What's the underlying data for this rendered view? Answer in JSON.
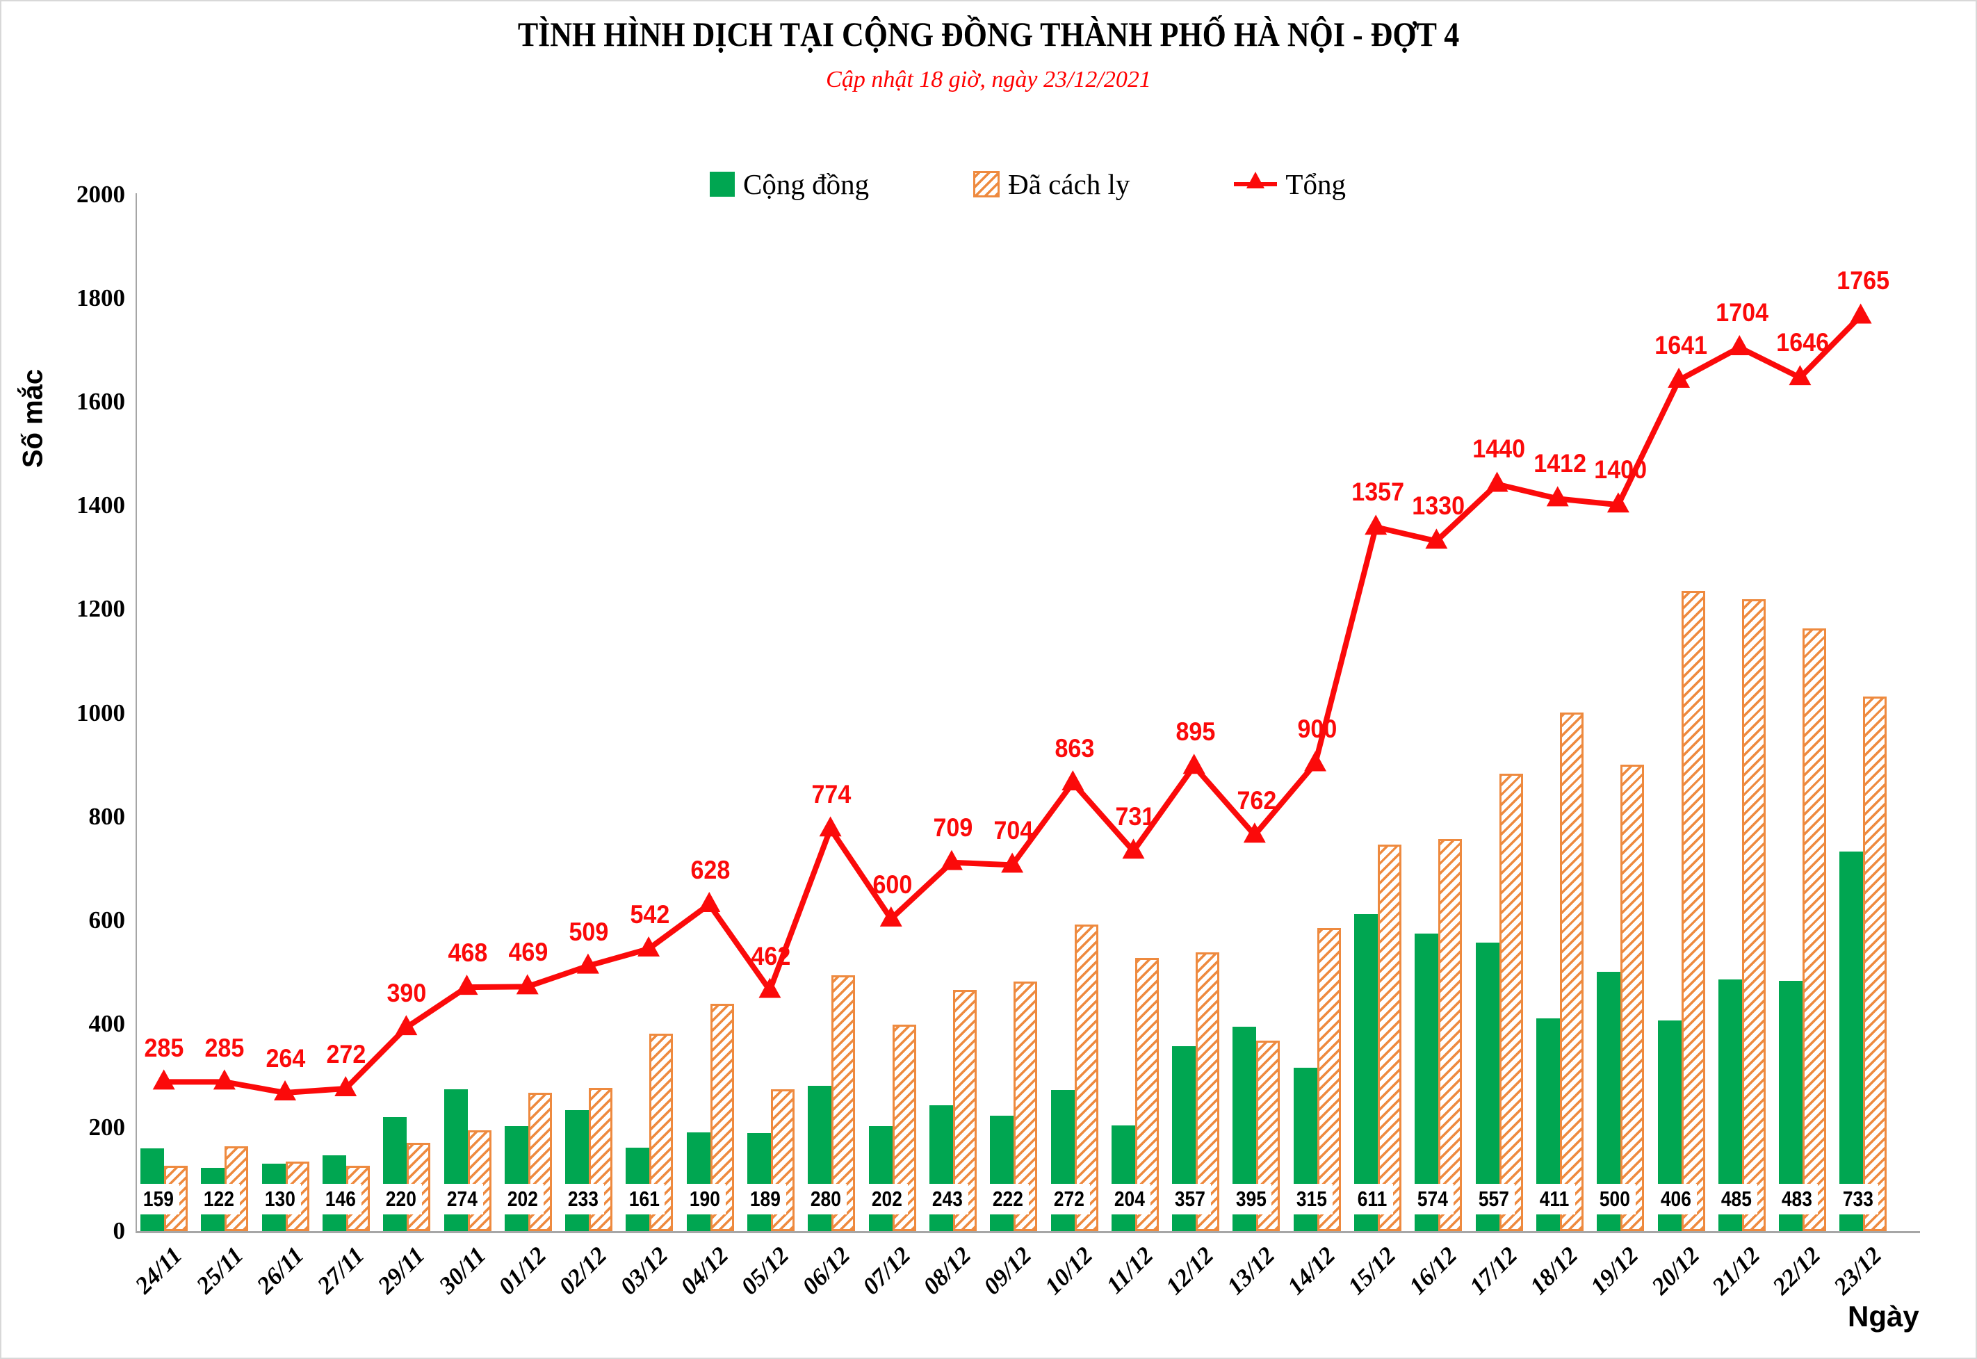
{
  "header": {
    "title": "TÌNH HÌNH DỊCH TẠI CỘNG ĐỒNG THÀNH PHỐ HÀ NỘI - ĐỢT 4",
    "subtitle": "Cập nhật 18 giờ, ngày 23/12/2021"
  },
  "legend": {
    "items": [
      {
        "label": "Cộng đồng",
        "swatch": "green-solid-square"
      },
      {
        "label": "Đã cách ly",
        "swatch": "orange-hatched-square"
      },
      {
        "label": "Tổng",
        "swatch": "red-line-with-triangle-marker"
      }
    ]
  },
  "colors": {
    "community_green": "#00A651",
    "quarantine_orange": "#EE8A3F",
    "total_red": "#FB0A0A",
    "subtitle_red": "#FF0000",
    "axis_gray": "#A6A6A6",
    "text_black": "#000000"
  },
  "y_axis": {
    "title": "Số mắc",
    "min": 0,
    "max": 2000,
    "step": 200,
    "tick_labels": [
      "0",
      "200",
      "400",
      "600",
      "800",
      "1000",
      "1200",
      "1400",
      "1600",
      "1800",
      "2000"
    ]
  },
  "x_axis": {
    "title": "Ngày"
  },
  "chart_data": {
    "type": "bar",
    "subtype": "grouped-bars-with-line-overlay",
    "title": "TÌNH HÌNH DỊCH TẠI CỘNG ĐỒNG THÀNH PHỐ HÀ NỘI - ĐỢT 4",
    "xlabel": "Ngày",
    "ylabel": "Số mắc",
    "ylim": [
      0,
      2000
    ],
    "grid": false,
    "legend_position": "top-center",
    "categories": [
      "24/11",
      "25/11",
      "26/11",
      "27/11",
      "29/11",
      "30/11",
      "01/12",
      "02/12",
      "03/12",
      "04/12",
      "05/12",
      "06/12",
      "07/12",
      "08/12",
      "09/12",
      "10/12",
      "11/12",
      "12/12",
      "13/12",
      "14/12",
      "15/12",
      "16/12",
      "17/12",
      "18/12",
      "19/12",
      "20/12",
      "21/12",
      "22/12",
      "23/12"
    ],
    "series": [
      {
        "name": "Cộng đồng",
        "type": "bar",
        "style": "solid-green",
        "labels_visible": true,
        "values": [
          159,
          122,
          130,
          146,
          220,
          274,
          202,
          233,
          161,
          190,
          189,
          280,
          202,
          243,
          222,
          272,
          204,
          357,
          395,
          315,
          611,
          574,
          557,
          411,
          500,
          406,
          485,
          483,
          733
        ]
      },
      {
        "name": "Đã cách ly",
        "type": "bar",
        "style": "orange-diagonal-hatch",
        "labels_visible": false,
        "values": [
          126,
          163,
          134,
          126,
          170,
          194,
          267,
          276,
          381,
          438,
          273,
          494,
          398,
          466,
          482,
          591,
          527,
          538,
          367,
          585,
          746,
          756,
          883,
          1001,
          900,
          1235,
          1219,
          1163,
          1032
        ]
      },
      {
        "name": "Tổng",
        "type": "line",
        "style": "red-line-triangle-markers",
        "labels_visible": true,
        "values": [
          285,
          285,
          264,
          272,
          390,
          468,
          469,
          509,
          542,
          628,
          462,
          774,
          600,
          709,
          704,
          863,
          731,
          895,
          762,
          900,
          1357,
          1330,
          1440,
          1412,
          1400,
          1641,
          1704,
          1646,
          1765
        ]
      }
    ]
  }
}
